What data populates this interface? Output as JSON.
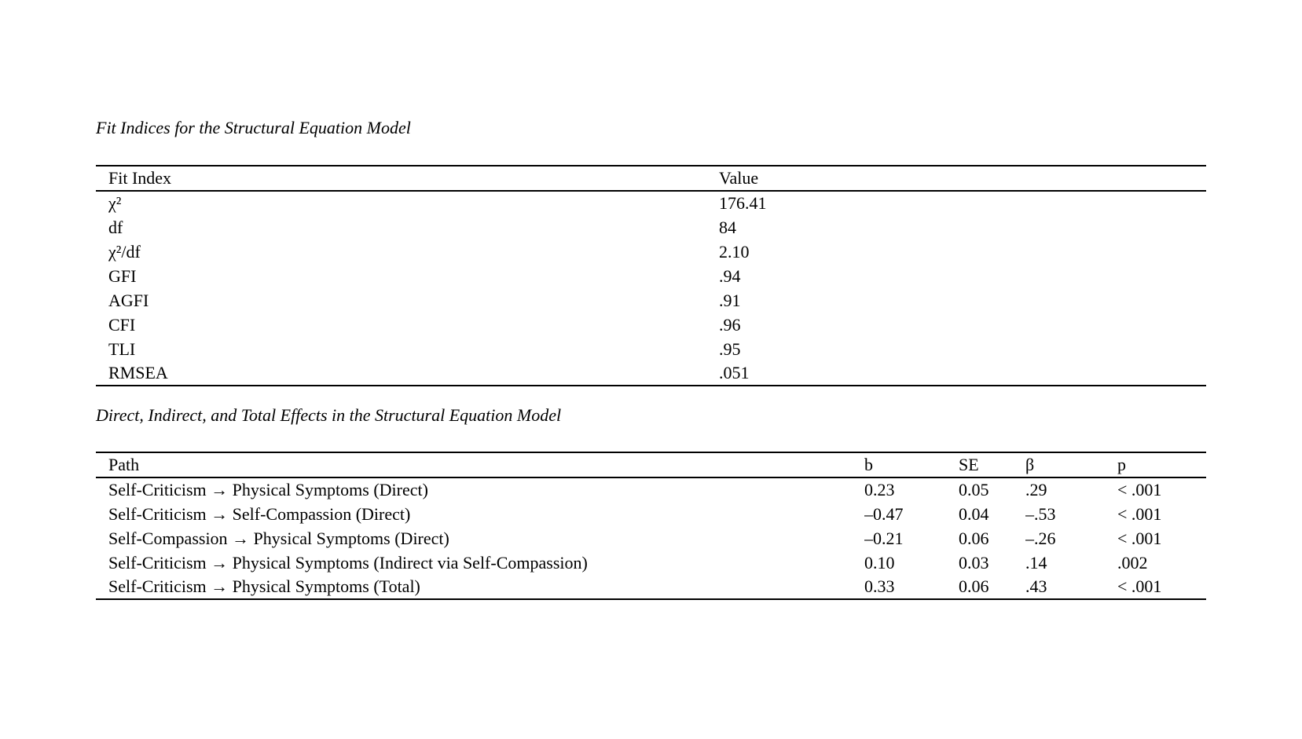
{
  "page": {
    "background_color": "#ffffff",
    "text_color": "#000000"
  },
  "fit_table": {
    "title": "Fit Indices for the Structural Equation Model",
    "columns": {
      "fit_index": "Fit Index",
      "value": "Value"
    },
    "rows": [
      {
        "fit_index": "χ²",
        "value": "176.41"
      },
      {
        "fit_index": "df",
        "value": "84"
      },
      {
        "fit_index": "χ²/df",
        "value": "2.10"
      },
      {
        "fit_index": "GFI",
        "value": ".94"
      },
      {
        "fit_index": "AGFI",
        "value": ".91"
      },
      {
        "fit_index": "CFI",
        "value": ".96"
      },
      {
        "fit_index": "TLI",
        "value": ".95"
      },
      {
        "fit_index": "RMSEA",
        "value": ".051"
      }
    ]
  },
  "effects_table": {
    "title": "Direct, Indirect, and Total Effects in the Structural Equation Model",
    "columns": {
      "path": "Path",
      "b": "b",
      "se": "SE",
      "beta": "β",
      "p": "p"
    },
    "rows": [
      {
        "path": "Self-Criticism → Physical Symptoms (Direct)",
        "b": "0.23",
        "se": "0.05",
        "beta": ".29",
        "p": "< .001"
      },
      {
        "path": "Self-Criticism → Self-Compassion (Direct)",
        "b": "–0.47",
        "se": "0.04",
        "beta": "–.53",
        "p": "< .001"
      },
      {
        "path": "Self-Compassion → Physical Symptoms (Direct)",
        "b": "–0.21",
        "se": "0.06",
        "beta": "–.26",
        "p": "< .001"
      },
      {
        "path": "Self-Criticism → Physical Symptoms (Indirect via Self-Compassion)",
        "b": "0.10",
        "se": "0.03",
        "beta": ".14",
        "p": ".002"
      },
      {
        "path": "Self-Criticism → Physical Symptoms (Total)",
        "b": "0.33",
        "se": "0.06",
        "beta": ".43",
        "p": "< .001"
      }
    ]
  }
}
